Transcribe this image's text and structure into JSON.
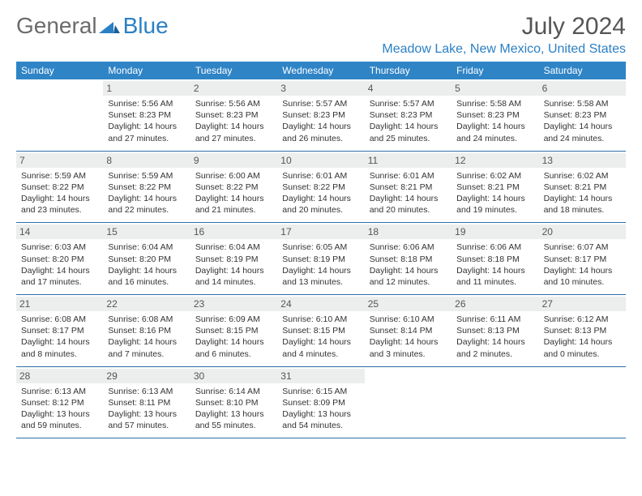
{
  "logo": {
    "text1": "General",
    "text2": "Blue",
    "mark_color": "#2b80c4"
  },
  "header": {
    "month": "July 2024",
    "location": "Meadow Lake, New Mexico, United States"
  },
  "colors": {
    "accent": "#2f84c6",
    "rule": "#2f6fa8",
    "daynum_bg": "#eceded"
  },
  "day_names": [
    "Sunday",
    "Monday",
    "Tuesday",
    "Wednesday",
    "Thursday",
    "Friday",
    "Saturday"
  ],
  "weeks": [
    [
      {
        "n": "",
        "sr": "",
        "ss": "",
        "dl": ""
      },
      {
        "n": "1",
        "sr": "5:56 AM",
        "ss": "8:23 PM",
        "dl": "14 hours and 27 minutes."
      },
      {
        "n": "2",
        "sr": "5:56 AM",
        "ss": "8:23 PM",
        "dl": "14 hours and 27 minutes."
      },
      {
        "n": "3",
        "sr": "5:57 AM",
        "ss": "8:23 PM",
        "dl": "14 hours and 26 minutes."
      },
      {
        "n": "4",
        "sr": "5:57 AM",
        "ss": "8:23 PM",
        "dl": "14 hours and 25 minutes."
      },
      {
        "n": "5",
        "sr": "5:58 AM",
        "ss": "8:23 PM",
        "dl": "14 hours and 24 minutes."
      },
      {
        "n": "6",
        "sr": "5:58 AM",
        "ss": "8:23 PM",
        "dl": "14 hours and 24 minutes."
      }
    ],
    [
      {
        "n": "7",
        "sr": "5:59 AM",
        "ss": "8:22 PM",
        "dl": "14 hours and 23 minutes."
      },
      {
        "n": "8",
        "sr": "5:59 AM",
        "ss": "8:22 PM",
        "dl": "14 hours and 22 minutes."
      },
      {
        "n": "9",
        "sr": "6:00 AM",
        "ss": "8:22 PM",
        "dl": "14 hours and 21 minutes."
      },
      {
        "n": "10",
        "sr": "6:01 AM",
        "ss": "8:22 PM",
        "dl": "14 hours and 20 minutes."
      },
      {
        "n": "11",
        "sr": "6:01 AM",
        "ss": "8:21 PM",
        "dl": "14 hours and 20 minutes."
      },
      {
        "n": "12",
        "sr": "6:02 AM",
        "ss": "8:21 PM",
        "dl": "14 hours and 19 minutes."
      },
      {
        "n": "13",
        "sr": "6:02 AM",
        "ss": "8:21 PM",
        "dl": "14 hours and 18 minutes."
      }
    ],
    [
      {
        "n": "14",
        "sr": "6:03 AM",
        "ss": "8:20 PM",
        "dl": "14 hours and 17 minutes."
      },
      {
        "n": "15",
        "sr": "6:04 AM",
        "ss": "8:20 PM",
        "dl": "14 hours and 16 minutes."
      },
      {
        "n": "16",
        "sr": "6:04 AM",
        "ss": "8:19 PM",
        "dl": "14 hours and 14 minutes."
      },
      {
        "n": "17",
        "sr": "6:05 AM",
        "ss": "8:19 PM",
        "dl": "14 hours and 13 minutes."
      },
      {
        "n": "18",
        "sr": "6:06 AM",
        "ss": "8:18 PM",
        "dl": "14 hours and 12 minutes."
      },
      {
        "n": "19",
        "sr": "6:06 AM",
        "ss": "8:18 PM",
        "dl": "14 hours and 11 minutes."
      },
      {
        "n": "20",
        "sr": "6:07 AM",
        "ss": "8:17 PM",
        "dl": "14 hours and 10 minutes."
      }
    ],
    [
      {
        "n": "21",
        "sr": "6:08 AM",
        "ss": "8:17 PM",
        "dl": "14 hours and 8 minutes."
      },
      {
        "n": "22",
        "sr": "6:08 AM",
        "ss": "8:16 PM",
        "dl": "14 hours and 7 minutes."
      },
      {
        "n": "23",
        "sr": "6:09 AM",
        "ss": "8:15 PM",
        "dl": "14 hours and 6 minutes."
      },
      {
        "n": "24",
        "sr": "6:10 AM",
        "ss": "8:15 PM",
        "dl": "14 hours and 4 minutes."
      },
      {
        "n": "25",
        "sr": "6:10 AM",
        "ss": "8:14 PM",
        "dl": "14 hours and 3 minutes."
      },
      {
        "n": "26",
        "sr": "6:11 AM",
        "ss": "8:13 PM",
        "dl": "14 hours and 2 minutes."
      },
      {
        "n": "27",
        "sr": "6:12 AM",
        "ss": "8:13 PM",
        "dl": "14 hours and 0 minutes."
      }
    ],
    [
      {
        "n": "28",
        "sr": "6:13 AM",
        "ss": "8:12 PM",
        "dl": "13 hours and 59 minutes."
      },
      {
        "n": "29",
        "sr": "6:13 AM",
        "ss": "8:11 PM",
        "dl": "13 hours and 57 minutes."
      },
      {
        "n": "30",
        "sr": "6:14 AM",
        "ss": "8:10 PM",
        "dl": "13 hours and 55 minutes."
      },
      {
        "n": "31",
        "sr": "6:15 AM",
        "ss": "8:09 PM",
        "dl": "13 hours and 54 minutes."
      },
      {
        "n": "",
        "sr": "",
        "ss": "",
        "dl": ""
      },
      {
        "n": "",
        "sr": "",
        "ss": "",
        "dl": ""
      },
      {
        "n": "",
        "sr": "",
        "ss": "",
        "dl": ""
      }
    ]
  ],
  "labels": {
    "sunrise": "Sunrise: ",
    "sunset": "Sunset: ",
    "daylight": "Daylight: "
  }
}
